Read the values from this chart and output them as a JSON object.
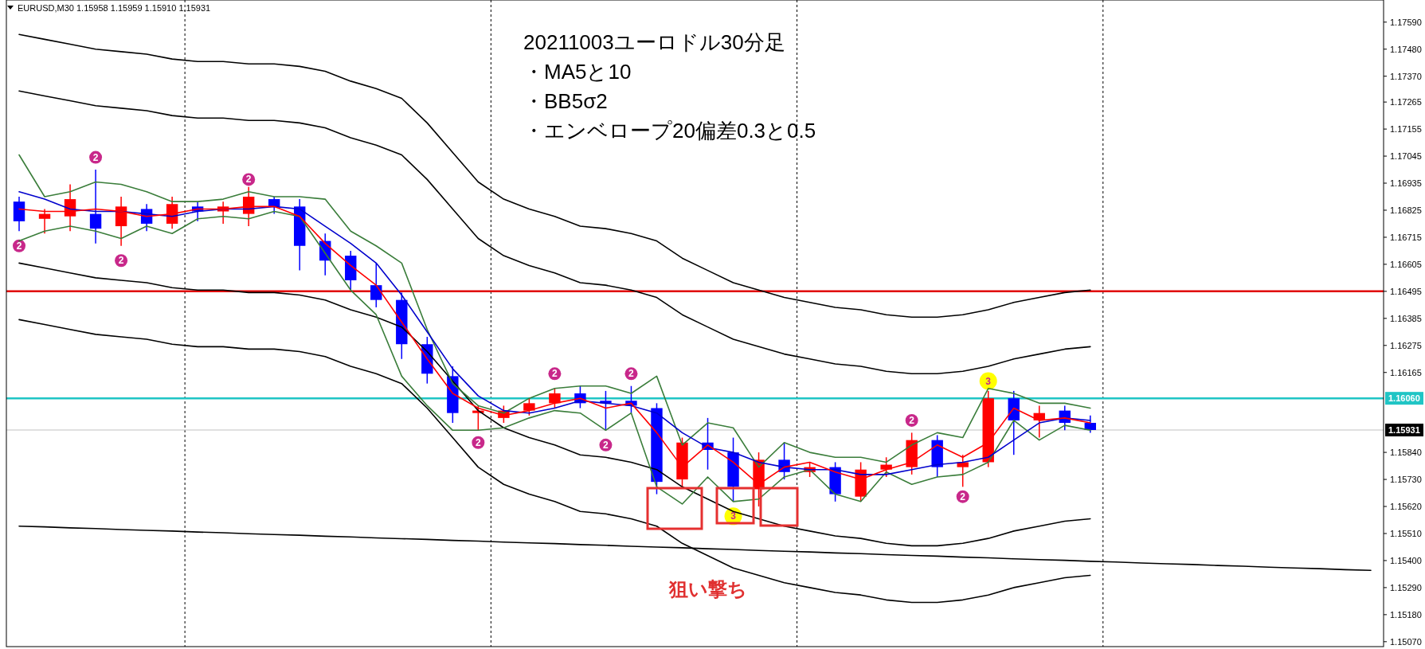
{
  "chart_data": {
    "type": "candlestick",
    "title": "20211003ユーロドル30分足",
    "annotations": [
      "EURUSD,M30  1.15958 1.15959 1.15910 1.15931",
      "・MA5と10",
      "・BB5σ2",
      "・エンベロープ20偏差0.3と0.5",
      "狙い撃ち"
    ],
    "categories": [
      null,
      null,
      null,
      null,
      null,
      null,
      null,
      null,
      null,
      null,
      null,
      null,
      null,
      null,
      null,
      null,
      null,
      null,
      null,
      null,
      null,
      null,
      null,
      null,
      null,
      null,
      null,
      null,
      null,
      null,
      null,
      null,
      null,
      null,
      null,
      null,
      null,
      null,
      null,
      null,
      null,
      null,
      null,
      null,
      null,
      null,
      null,
      null,
      null,
      null,
      null,
      null,
      null,
      null
    ],
    "ohlc": [
      [
        1.1686,
        1.1688,
        1.1674,
        1.1678
      ],
      [
        1.1679,
        1.1683,
        1.1673,
        1.1681
      ],
      [
        1.168,
        1.1693,
        1.1674,
        1.1687
      ],
      [
        1.1681,
        1.1699,
        1.1669,
        1.1675
      ],
      [
        1.1676,
        1.1688,
        1.1668,
        1.1684
      ],
      [
        1.1683,
        1.1685,
        1.1674,
        1.1677
      ],
      [
        1.1677,
        1.1688,
        1.1675,
        1.1685
      ],
      [
        1.1684,
        1.1686,
        1.1678,
        1.1682
      ],
      [
        1.1682,
        1.1686,
        1.1677,
        1.1684
      ],
      [
        1.1681,
        1.1692,
        1.1676,
        1.1688
      ],
      [
        1.1687,
        1.1688,
        1.1681,
        1.1684
      ],
      [
        1.1684,
        1.1687,
        1.1658,
        1.1668
      ],
      [
        1.167,
        1.1673,
        1.1656,
        1.1662
      ],
      [
        1.1664,
        1.1666,
        1.165,
        1.1654
      ],
      [
        1.1652,
        1.1661,
        1.1643,
        1.1646
      ],
      [
        1.1646,
        1.1649,
        1.1622,
        1.1628
      ],
      [
        1.1628,
        1.1631,
        1.1612,
        1.1616
      ],
      [
        1.1615,
        1.1619,
        1.1596,
        1.16
      ],
      [
        1.16,
        1.1603,
        1.1593,
        1.1601
      ],
      [
        1.1598,
        1.1603,
        1.1596,
        1.1601
      ],
      [
        1.1601,
        1.1606,
        1.1599,
        1.1604
      ],
      [
        1.1604,
        1.161,
        1.1602,
        1.1608
      ],
      [
        1.1608,
        1.1611,
        1.1602,
        1.1604
      ],
      [
        1.1605,
        1.1609,
        1.1593,
        1.1604
      ],
      [
        1.1605,
        1.1611,
        1.16,
        1.1603
      ],
      [
        1.1602,
        1.1604,
        1.1567,
        1.1572
      ],
      [
        1.1573,
        1.159,
        1.157,
        1.1588
      ],
      [
        1.1588,
        1.1598,
        1.1577,
        1.1585
      ],
      [
        1.1584,
        1.159,
        1.1564,
        1.157
      ],
      [
        1.1569,
        1.1584,
        1.1562,
        1.1581
      ],
      [
        1.1581,
        1.1588,
        1.1573,
        1.1576
      ],
      [
        1.1576,
        1.158,
        1.1574,
        1.1578
      ],
      [
        1.1578,
        1.158,
        1.1564,
        1.1567
      ],
      [
        1.1566,
        1.158,
        1.1564,
        1.1577
      ],
      [
        1.1577,
        1.1582,
        1.1574,
        1.1579
      ],
      [
        1.1578,
        1.1592,
        1.1575,
        1.1589
      ],
      [
        1.1589,
        1.1591,
        1.1574,
        1.1578
      ],
      [
        1.1578,
        1.1583,
        1.157,
        1.158
      ],
      [
        1.158,
        1.1609,
        1.1578,
        1.1606
      ],
      [
        1.1606,
        1.1609,
        1.1583,
        1.1597
      ],
      [
        1.1597,
        1.1603,
        1.159,
        1.16
      ],
      [
        1.1601,
        1.1603,
        1.1593,
        1.1596
      ],
      [
        1.1596,
        1.1599,
        1.1592,
        1.15931
      ],
      null,
      null,
      null,
      null,
      null,
      null,
      null,
      null,
      null,
      null,
      null
    ],
    "colors": [
      "#0000ff",
      "#ff0000",
      "#ff0000",
      "#0000ff",
      "#ff0000",
      "#0000ff",
      "#ff0000",
      "#0000ff",
      "#ff0000",
      "#ff0000",
      "#0000ff",
      "#0000ff",
      "#0000ff",
      "#0000ff",
      "#0000ff",
      "#0000ff",
      "#0000ff",
      "#0000ff",
      "#ff0000",
      "#ff0000",
      "#ff0000",
      "#ff0000",
      "#0000ff",
      "#0000ff",
      "#0000ff",
      "#0000ff",
      "#ff0000",
      "#0000ff",
      "#0000ff",
      "#ff0000",
      "#0000ff",
      "#ff0000",
      "#0000ff",
      "#ff0000",
      "#ff0000",
      "#ff0000",
      "#0000ff",
      "#ff0000",
      "#ff0000",
      "#0000ff",
      "#ff0000",
      "#0000ff",
      "#0000ff",
      null,
      null,
      null,
      null,
      null,
      null,
      null,
      null,
      null,
      null,
      null
    ],
    "series": [
      {
        "type": "line",
        "color": "#000000",
        "values": [
          1.1754,
          1.1752,
          1.175,
          1.1748,
          1.1747,
          1.1746,
          1.1744,
          1.1743,
          1.1743,
          1.1742,
          1.1742,
          1.1741,
          1.1739,
          1.1735,
          1.1732,
          1.1728,
          1.1718,
          1.1706,
          1.1694,
          1.1687,
          1.1683,
          1.168,
          1.1676,
          1.1675,
          1.1673,
          1.167,
          1.1663,
          1.1658,
          1.1653,
          1.165,
          1.1647,
          1.1645,
          1.1643,
          1.1642,
          1.164,
          1.1639,
          1.1639,
          1.164,
          1.1642,
          1.1645,
          1.1647,
          1.1649,
          1.165,
          null,
          null,
          null,
          null,
          null,
          null,
          null,
          null,
          null,
          null,
          null
        ]
      },
      {
        "type": "line",
        "color": "#000000",
        "values": [
          1.1731,
          1.1729,
          1.1727,
          1.1725,
          1.1724,
          1.1723,
          1.1721,
          1.172,
          1.172,
          1.1719,
          1.1719,
          1.1718,
          1.1716,
          1.1712,
          1.1709,
          1.1705,
          1.1695,
          1.1683,
          1.1671,
          1.1664,
          1.166,
          1.1657,
          1.1653,
          1.1652,
          1.165,
          1.1647,
          1.164,
          1.1635,
          1.163,
          1.1627,
          1.1624,
          1.1622,
          1.162,
          1.1619,
          1.1617,
          1.1616,
          1.1616,
          1.1617,
          1.1619,
          1.1622,
          1.1624,
          1.1626,
          1.1627,
          null,
          null,
          null,
          null,
          null,
          null,
          null,
          null,
          null,
          null,
          null
        ]
      },
      {
        "type": "line",
        "color": "#000000",
        "values": [
          1.1661,
          1.1659,
          1.1657,
          1.1655,
          1.1654,
          1.1653,
          1.1651,
          1.165,
          1.165,
          1.1649,
          1.1649,
          1.1648,
          1.1646,
          1.1642,
          1.1639,
          1.1635,
          1.1625,
          1.1613,
          1.1601,
          1.1594,
          1.159,
          1.1587,
          1.1583,
          1.1582,
          1.158,
          1.1577,
          1.157,
          1.1565,
          1.156,
          1.1557,
          1.1554,
          1.1552,
          1.155,
          1.1549,
          1.1547,
          1.1546,
          1.1546,
          1.1547,
          1.1549,
          1.1552,
          1.1554,
          1.1556,
          1.1557,
          null,
          null,
          null,
          null,
          null,
          null,
          null,
          null,
          null,
          null,
          null
        ]
      },
      {
        "type": "line",
        "color": "#000000",
        "values": [
          1.1638,
          1.1636,
          1.1634,
          1.1632,
          1.1631,
          1.163,
          1.1628,
          1.1627,
          1.1627,
          1.1626,
          1.1626,
          1.1625,
          1.1623,
          1.1619,
          1.1616,
          1.1612,
          1.1602,
          1.159,
          1.1578,
          1.1571,
          1.1567,
          1.1564,
          1.156,
          1.1559,
          1.1557,
          1.1554,
          1.1547,
          1.1542,
          1.1537,
          1.1534,
          1.1531,
          1.1529,
          1.1527,
          1.1526,
          1.1524,
          1.1523,
          1.1523,
          1.1524,
          1.1526,
          1.1529,
          1.1531,
          1.1533,
          1.1534,
          null,
          null,
          null,
          null,
          null,
          null,
          null,
          null,
          null,
          null,
          null
        ]
      },
      {
        "type": "line",
        "color": "#000000",
        "values": [
          1.1554,
          1.15537,
          1.15533,
          1.1553,
          1.15526,
          1.15523,
          1.1552,
          1.15516,
          1.15513,
          1.15509,
          1.15506,
          1.15503,
          1.15499,
          1.15496,
          1.15492,
          1.15489,
          1.15486,
          1.15482,
          1.15479,
          1.15475,
          1.15472,
          1.15469,
          1.15465,
          1.15462,
          1.15458,
          1.15455,
          1.15452,
          1.15448,
          1.15445,
          1.15441,
          1.15438,
          1.15435,
          1.15431,
          1.15428,
          1.15424,
          1.15421,
          1.15418,
          1.15414,
          1.15411,
          1.15407,
          1.15404,
          1.15401,
          1.15397,
          1.15394,
          1.1539,
          1.15387,
          1.15384,
          1.1538,
          1.15377,
          1.15373,
          1.1537,
          1.15367,
          1.15363,
          1.1536
        ]
      },
      {
        "type": "line",
        "color": "#3a7d3a",
        "values": [
          1.1705,
          1.1688,
          1.169,
          1.1694,
          1.1693,
          1.169,
          1.1686,
          1.1686,
          1.1687,
          1.169,
          1.1688,
          1.1688,
          1.1687,
          1.1674,
          1.1668,
          1.1661,
          1.1634,
          1.1612,
          1.1603,
          1.16,
          1.1606,
          1.161,
          1.1611,
          1.1611,
          1.1608,
          1.1615,
          1.1587,
          1.1596,
          1.1594,
          1.1578,
          1.1588,
          1.1584,
          1.1582,
          1.1582,
          1.158,
          1.1587,
          1.1592,
          1.159,
          1.161,
          1.1608,
          1.1604,
          1.1604,
          1.1602,
          null,
          null,
          null,
          null,
          null,
          null,
          null,
          null,
          null,
          null,
          null
        ]
      },
      {
        "type": "line",
        "color": "#3a7d3a",
        "values": [
          1.167,
          1.1674,
          1.1676,
          1.1674,
          1.1671,
          1.1676,
          1.1673,
          1.1679,
          1.168,
          1.1679,
          1.1682,
          1.168,
          1.1665,
          1.165,
          1.164,
          1.1615,
          1.1603,
          1.1593,
          1.1593,
          1.1594,
          1.1598,
          1.1601,
          1.16,
          1.1593,
          1.16,
          1.157,
          1.1563,
          1.1574,
          1.1564,
          1.1565,
          1.1574,
          1.1577,
          1.1567,
          1.1564,
          1.1576,
          1.1571,
          1.1574,
          1.1575,
          1.158,
          1.1597,
          1.1589,
          1.1595,
          1.1593,
          null,
          null,
          null,
          null,
          null,
          null,
          null,
          null,
          null,
          null,
          null
        ]
      },
      {
        "type": "line",
        "color": "#0000cc",
        "values": [
          1.169,
          1.1687,
          1.1683,
          1.1682,
          1.1682,
          1.1681,
          1.168,
          1.1682,
          1.1683,
          1.1683,
          1.1684,
          1.1683,
          1.1676,
          1.1669,
          1.1661,
          1.1648,
          1.1633,
          1.1618,
          1.1607,
          1.1601,
          1.16,
          1.1602,
          1.1605,
          1.1604,
          1.1603,
          1.16,
          1.1592,
          1.1586,
          1.1584,
          1.158,
          1.1578,
          1.1577,
          1.1577,
          1.1575,
          1.1575,
          1.1577,
          1.1579,
          1.158,
          1.1582,
          1.1589,
          1.1596,
          1.1598,
          1.1597,
          null,
          null,
          null,
          null,
          null,
          null,
          null,
          null,
          null,
          null,
          null
        ]
      },
      {
        "type": "line",
        "color": "#ff0000",
        "values": [
          1.1683,
          1.1682,
          1.1682,
          1.1683,
          1.1682,
          1.168,
          1.1681,
          1.1683,
          1.1683,
          1.1684,
          1.1684,
          1.168,
          1.1669,
          1.166,
          1.1652,
          1.1637,
          1.1622,
          1.1608,
          1.1602,
          1.1599,
          1.1601,
          1.1604,
          1.1606,
          1.1602,
          1.1604,
          1.1592,
          1.1578,
          1.1587,
          1.158,
          1.1571,
          1.1578,
          1.158,
          1.1576,
          1.1573,
          1.1577,
          1.158,
          1.1587,
          1.1582,
          1.1588,
          1.1602,
          1.1597,
          1.1598,
          1.1596,
          null,
          null,
          null,
          null,
          null,
          null,
          null,
          null,
          null,
          null,
          null
        ]
      },
      {
        "type": "scatter",
        "name": "2",
        "color": "#c8288a",
        "values": [
          1.1668,
          null,
          null,
          1.1704,
          1.1662,
          null,
          null,
          null,
          null,
          1.1695,
          null,
          null,
          null,
          null,
          null,
          null,
          null,
          null,
          1.1588,
          null,
          null,
          1.1616,
          null,
          1.1587,
          1.1616,
          null,
          null,
          null,
          null,
          null,
          null,
          null,
          null,
          null,
          null,
          1.1597,
          null,
          1.1566,
          null,
          null,
          null,
          null,
          null,
          null,
          null,
          null,
          null,
          null,
          null,
          null,
          null,
          null,
          null,
          null
        ]
      },
      {
        "type": "scatter",
        "name": "3",
        "color": "#ffff00",
        "values": [
          null,
          null,
          null,
          null,
          null,
          null,
          null,
          null,
          null,
          null,
          null,
          null,
          null,
          null,
          null,
          null,
          null,
          null,
          null,
          null,
          null,
          null,
          null,
          null,
          null,
          null,
          null,
          null,
          1.1558,
          null,
          null,
          null,
          null,
          null,
          null,
          null,
          null,
          null,
          1.1613,
          null,
          null,
          null,
          null,
          null,
          null,
          null,
          null,
          null,
          null,
          null,
          null,
          null,
          null,
          null
        ]
      }
    ],
    "ylim": [
      1.1505,
      1.1768
    ],
    "yticks": [
      {
        "value": 1.1759,
        "label": "1.17590"
      },
      {
        "value": 1.1748,
        "label": "1.17480"
      },
      {
        "value": 1.1737,
        "label": "1.17370"
      },
      {
        "value": 1.17265,
        "label": "1.17265"
      },
      {
        "value": 1.17155,
        "label": "1.17155"
      },
      {
        "value": 1.17045,
        "label": "1.17045"
      },
      {
        "value": 1.16935,
        "label": "1.16935"
      },
      {
        "value": 1.16825,
        "label": "1.16825"
      },
      {
        "value": 1.16715,
        "label": "1.16715"
      },
      {
        "value": 1.16605,
        "label": "1.16605"
      },
      {
        "value": 1.16495,
        "label": "1.16495"
      },
      {
        "value": 1.16385,
        "label": "1.16385"
      },
      {
        "value": 1.16275,
        "label": "1.16275"
      },
      {
        "value": 1.16165,
        "label": "1.16165"
      },
      {
        "value": 1.1584,
        "label": "1.15840"
      },
      {
        "value": 1.1573,
        "label": "1.15730"
      },
      {
        "value": 1.1562,
        "label": "1.15620"
      },
      {
        "value": 1.1551,
        "label": "1.15510"
      },
      {
        "value": 1.154,
        "label": "1.15400"
      },
      {
        "value": 1.1529,
        "label": "1.15290"
      },
      {
        "value": 1.1518,
        "label": "1.15180"
      },
      {
        "value": 1.1507,
        "label": "1.15070"
      }
    ],
    "ref_lines": [
      {
        "axis": "y",
        "value": 1.16495,
        "color": "#e00000"
      },
      {
        "axis": "y",
        "value": 1.1606,
        "label": "1.16060",
        "color": "#20c5c5"
      },
      {
        "axis": "y",
        "value": 1.15931,
        "label": "1.15931",
        "color": "#c0c0c0"
      }
    ],
    "grid": "x",
    "tick_labels": "y"
  }
}
